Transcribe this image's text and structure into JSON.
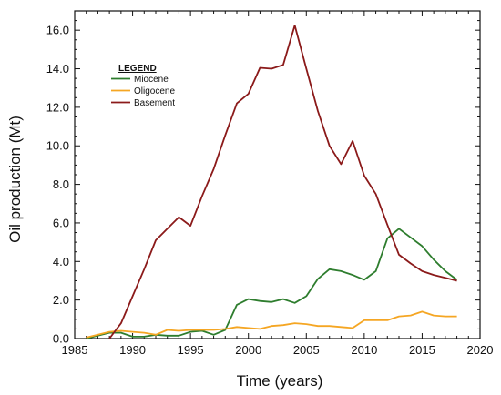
{
  "chart_data": {
    "type": "line",
    "xlabel": "Time (years)",
    "ylabel": "Oil production (Mt)",
    "xlim": [
      1985,
      2020
    ],
    "ylim": [
      0,
      17
    ],
    "xticks": [
      1985,
      1990,
      1995,
      2000,
      2005,
      2010,
      2015,
      2020
    ],
    "xtick_labels": [
      "1985",
      "1990",
      "1995",
      "2000",
      "2005",
      "2010",
      "2015",
      "2020"
    ],
    "yticks": [
      0,
      2,
      4,
      6,
      8,
      10,
      12,
      14,
      16
    ],
    "ytick_labels": [
      "0.0",
      "2.0",
      "4.0",
      "6.0",
      "8.0",
      "10.0",
      "12.0",
      "14.0",
      "16.0"
    ],
    "grid": false,
    "legend": {
      "title": "LEGEND",
      "placement": "top-left"
    },
    "series": [
      {
        "name": "Miocene",
        "color": "#2e7d2e",
        "x": [
          1986,
          1987,
          1988,
          1989,
          1990,
          1991,
          1992,
          1993,
          1994,
          1995,
          1996,
          1997,
          1998,
          1999,
          2000,
          2001,
          2002,
          2003,
          2004,
          2005,
          2006,
          2007,
          2008,
          2009,
          2010,
          2011,
          2012,
          2013,
          2014,
          2015,
          2016,
          2017,
          2018
        ],
        "values": [
          0.0,
          0.15,
          0.3,
          0.3,
          0.1,
          0.1,
          0.2,
          0.15,
          0.15,
          0.35,
          0.4,
          0.2,
          0.45,
          1.75,
          2.05,
          1.95,
          1.9,
          2.05,
          1.85,
          2.2,
          3.1,
          3.6,
          3.5,
          3.3,
          3.05,
          3.5,
          5.2,
          5.7,
          5.25,
          4.8,
          4.1,
          3.5,
          3.05
        ]
      },
      {
        "name": "Oligocene",
        "color": "#f5a623",
        "x": [
          1986,
          1987,
          1988,
          1989,
          1990,
          1991,
          1992,
          1993,
          1994,
          1995,
          1996,
          1997,
          1998,
          1999,
          2000,
          2001,
          2002,
          2003,
          2004,
          2005,
          2006,
          2007,
          2008,
          2009,
          2010,
          2011,
          2012,
          2013,
          2014,
          2015,
          2016,
          2017,
          2018
        ],
        "values": [
          0.05,
          0.2,
          0.35,
          0.4,
          0.35,
          0.3,
          0.2,
          0.45,
          0.4,
          0.45,
          0.45,
          0.45,
          0.5,
          0.6,
          0.55,
          0.5,
          0.65,
          0.7,
          0.8,
          0.75,
          0.65,
          0.65,
          0.6,
          0.55,
          0.95,
          0.95,
          0.95,
          1.15,
          1.2,
          1.4,
          1.2,
          1.15,
          1.15
        ]
      },
      {
        "name": "Basement",
        "color": "#8b1a1a",
        "x": [
          1988,
          1989,
          1990,
          1991,
          1992,
          1993,
          1994,
          1995,
          1996,
          1997,
          1998,
          1999,
          2000,
          2001,
          2002,
          2003,
          2004,
          2005,
          2006,
          2007,
          2008,
          2009,
          2010,
          2011,
          2012,
          2013,
          2014,
          2015,
          2016,
          2017,
          2018
        ],
        "values": [
          0.0,
          0.8,
          2.2,
          3.6,
          5.1,
          5.7,
          6.3,
          5.85,
          7.4,
          8.8,
          10.55,
          12.2,
          12.7,
          14.05,
          14.0,
          14.2,
          16.25,
          14.0,
          11.8,
          10.0,
          9.05,
          10.25,
          8.45,
          7.5,
          5.9,
          4.35,
          3.9,
          3.5,
          3.3,
          3.15,
          3.0
        ]
      }
    ]
  }
}
